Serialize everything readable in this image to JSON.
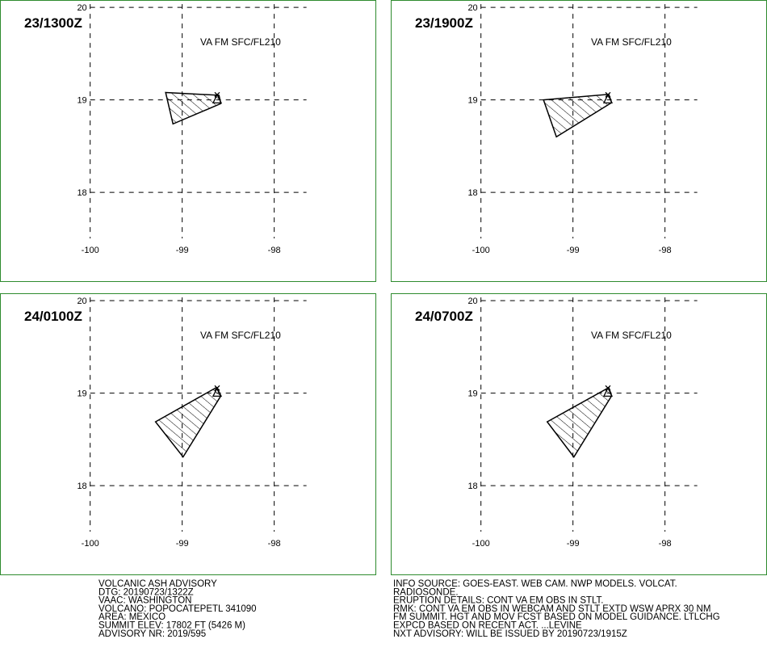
{
  "map": {
    "lonlim": [
      -100.98,
      -96.9
    ],
    "latlim": [
      17.04,
      20.08
    ],
    "xticks": [
      -100,
      -99,
      -98
    ],
    "yticks": [
      18,
      19,
      20
    ],
    "summit": [
      -98.62,
      19.02
    ],
    "panels": [
      {
        "time": "23/1300Z",
        "level": "VA FM SFC/FL210",
        "polygon": [
          [
            -99.18,
            19.08
          ],
          [
            -98.6,
            19.05
          ],
          [
            -98.58,
            18.96
          ],
          [
            -99.1,
            18.74
          ]
        ]
      },
      {
        "time": "23/1900Z",
        "level": "VA FM SFC/FL210",
        "polygon": [
          [
            -99.32,
            19.0
          ],
          [
            -98.61,
            19.06
          ],
          [
            -98.58,
            18.97
          ],
          [
            -99.18,
            18.6
          ]
        ]
      },
      {
        "time": "24/0100Z",
        "level": "VA FM SFC/FL210",
        "polygon": [
          [
            -99.29,
            18.69
          ],
          [
            -98.63,
            19.06
          ],
          [
            -98.58,
            18.97
          ],
          [
            -98.99,
            18.31
          ]
        ]
      },
      {
        "time": "24/0700Z",
        "level": "VA FM SFC/FL210",
        "polygon": [
          [
            -99.28,
            18.69
          ],
          [
            -98.61,
            19.06
          ],
          [
            -98.58,
            18.97
          ],
          [
            -98.99,
            18.31
          ]
        ]
      }
    ]
  },
  "advisory": {
    "left": [
      "VOLCANIC ASH ADVISORY",
      "DTG: 20190723/1322Z",
      "VAAC: WASHINGTON",
      "VOLCANO: POPOCATEPETL 341090",
      "AREA: MEXICO",
      "SUMMIT ELEV: 17802 FT (5426 M)",
      "ADVISORY NR: 2019/595"
    ],
    "right": [
      "INFO SOURCE: GOES-EAST. WEB CAM. NWP MODELS. VOLCAT.",
      "RADIOSONDE.",
      "ERUPTION DETAILS: CONT VA EM OBS IN STLT.",
      "RMK: CONT VA EM OBS IN WEBCAM AND STLT EXTD WSW APRX 30 NM",
      "FM SUMMIT. HGT AND MOV FCST BASED ON MODEL GUIDANCE. LTLCHG",
      "EXPCD BASED ON RECENT ACT. ...LEVINE",
      "NXT ADVISORY: WILL BE ISSUED BY 20190723/1915Z"
    ]
  }
}
